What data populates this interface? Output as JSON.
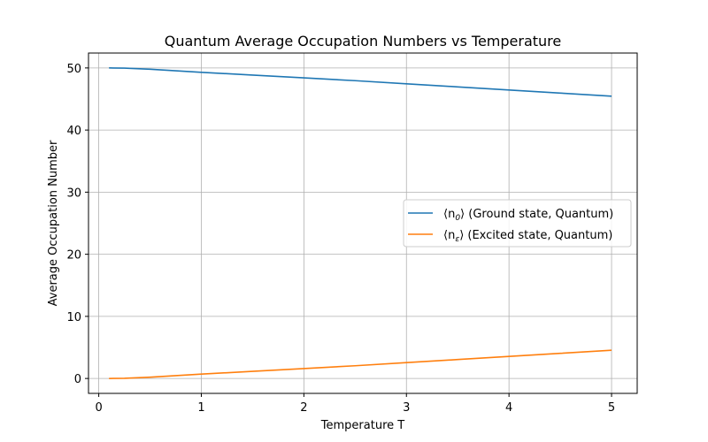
{
  "chart_data": {
    "type": "line",
    "title": "Quantum Average Occupation Numbers vs Temperature",
    "xlabel": "Temperature T",
    "ylabel": "Average Occupation Number",
    "xlim": [
      -0.1,
      5.25
    ],
    "ylim": [
      -2.4,
      52.4
    ],
    "xticks": [
      0,
      1,
      2,
      3,
      4,
      5
    ],
    "yticks": [
      0,
      10,
      20,
      30,
      40,
      50
    ],
    "grid": true,
    "legend_position": "center-right",
    "series": [
      {
        "name_prefix": "⟨n",
        "name_sub": "0",
        "name_suffix": "⟩ (Ground state, Quantum)",
        "color": "#1f77b4",
        "x": [
          0.1,
          0.25,
          0.5,
          0.75,
          1.0,
          1.5,
          2.0,
          2.5,
          3.0,
          3.5,
          4.0,
          4.5,
          5.0
        ],
        "y": [
          50.0,
          49.97,
          49.8,
          49.55,
          49.3,
          48.85,
          48.4,
          47.95,
          47.45,
          46.95,
          46.45,
          45.95,
          45.45
        ]
      },
      {
        "name_prefix": "⟨n",
        "name_sub": "ε",
        "name_suffix": "⟩ (Excited state, Quantum)",
        "color": "#ff7f0e",
        "x": [
          0.1,
          0.25,
          0.5,
          0.75,
          1.0,
          1.5,
          2.0,
          2.5,
          3.0,
          3.5,
          4.0,
          4.5,
          5.0
        ],
        "y": [
          0.0,
          0.03,
          0.2,
          0.45,
          0.7,
          1.15,
          1.6,
          2.05,
          2.55,
          3.05,
          3.55,
          4.05,
          4.55
        ]
      }
    ]
  }
}
